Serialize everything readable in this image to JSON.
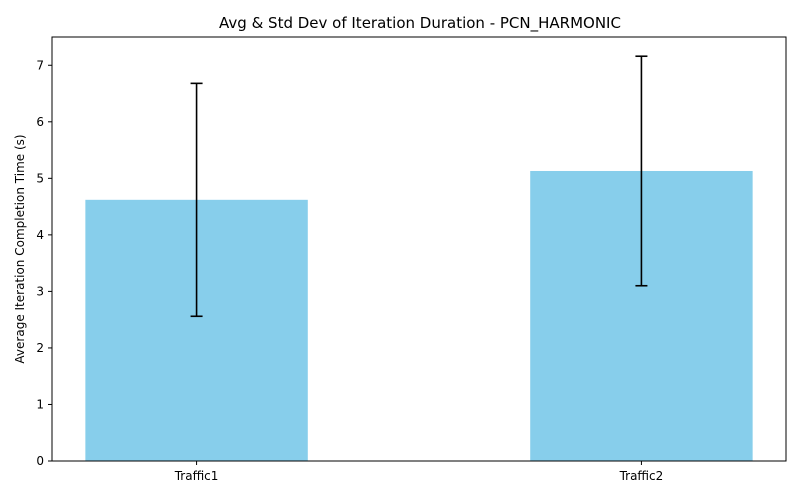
{
  "chart_data": {
    "type": "bar",
    "title": "Avg & Std Dev of Iteration Duration - PCN_HARMONIC",
    "xlabel": "",
    "ylabel": "Average Iteration Completion Time (s)",
    "categories": [
      "Traffic1",
      "Traffic2"
    ],
    "values": [
      4.62,
      5.13
    ],
    "errors": [
      2.06,
      2.03
    ],
    "ylim": [
      0,
      7.5
    ],
    "yticks": [
      0,
      1,
      2,
      3,
      4,
      5,
      6,
      7
    ],
    "grid": false,
    "legend": "none",
    "bar_color": "#87CEEB",
    "error_color": "#000000"
  }
}
